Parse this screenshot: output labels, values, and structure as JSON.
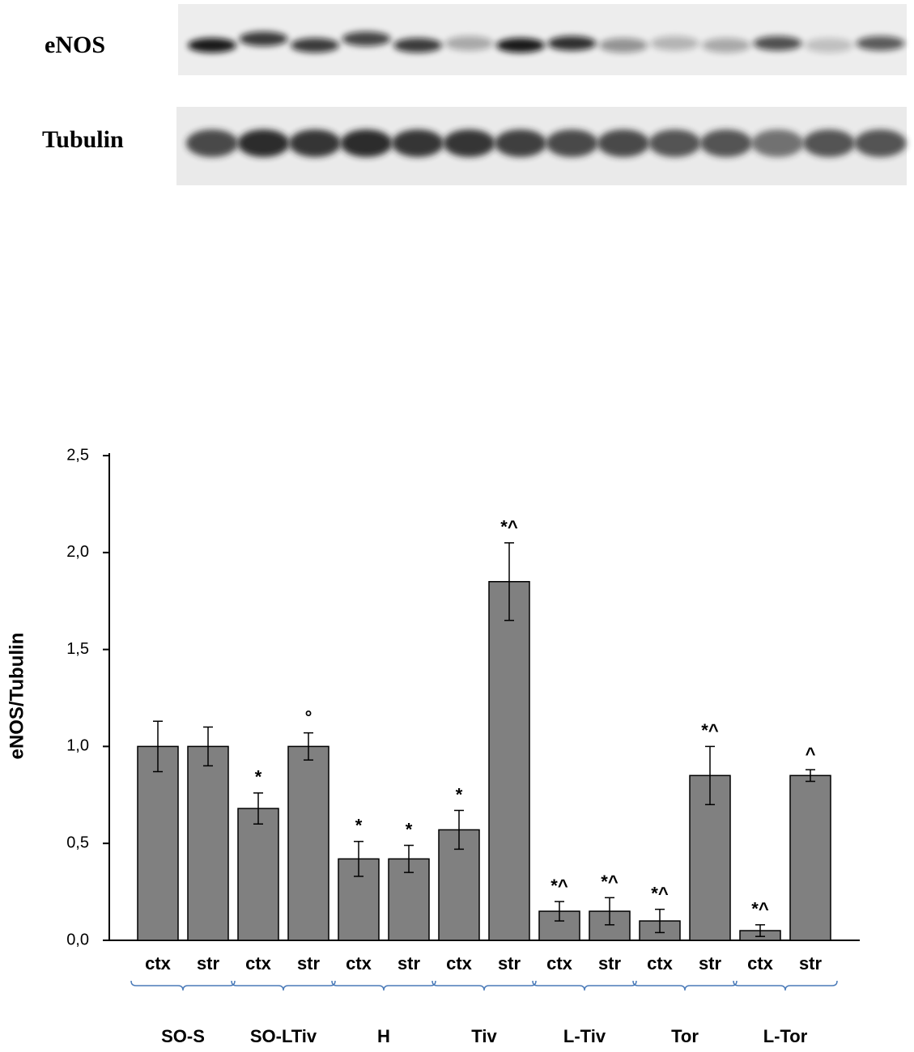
{
  "chart_data": {
    "type": "bar",
    "blot_labels": [
      "eNOS",
      "Tubulin"
    ],
    "y_label": "eNOS/Tubulin",
    "categories": [
      "ctx",
      "str",
      "ctx",
      "str",
      "ctx",
      "str",
      "ctx",
      "str",
      "ctx",
      "str",
      "ctx",
      "str",
      "ctx",
      "str"
    ],
    "groups": [
      "SO-S",
      "SO-LTiv",
      "H",
      "Tiv",
      "L-Tiv",
      "Tor",
      "L-Tor"
    ],
    "values": [
      1.0,
      1.0,
      0.68,
      1.0,
      0.42,
      0.42,
      0.57,
      1.85,
      0.15,
      0.15,
      0.1,
      0.85,
      0.05,
      0.85
    ],
    "errors": [
      0.13,
      0.1,
      0.08,
      0.07,
      0.09,
      0.07,
      0.1,
      0.2,
      0.05,
      0.07,
      0.06,
      0.15,
      0.03,
      0.03
    ],
    "annotations": [
      null,
      null,
      "*",
      "°",
      "*",
      "*",
      "*",
      "*^",
      "*^",
      "*^",
      "*^",
      "*^",
      "*^",
      "^"
    ],
    "color": "#808080",
    "ylim": [
      0,
      2.5
    ],
    "yticks": [
      {
        "value": 0,
        "label": "0,0"
      },
      {
        "value": 0.5,
        "label": "0,5"
      },
      {
        "value": 1.0,
        "label": "1,0"
      },
      {
        "value": 1.5,
        "label": "1,5"
      },
      {
        "value": 2.0,
        "label": "2,0"
      },
      {
        "value": 2.5,
        "label": "2,5"
      }
    ],
    "grid": false
  }
}
